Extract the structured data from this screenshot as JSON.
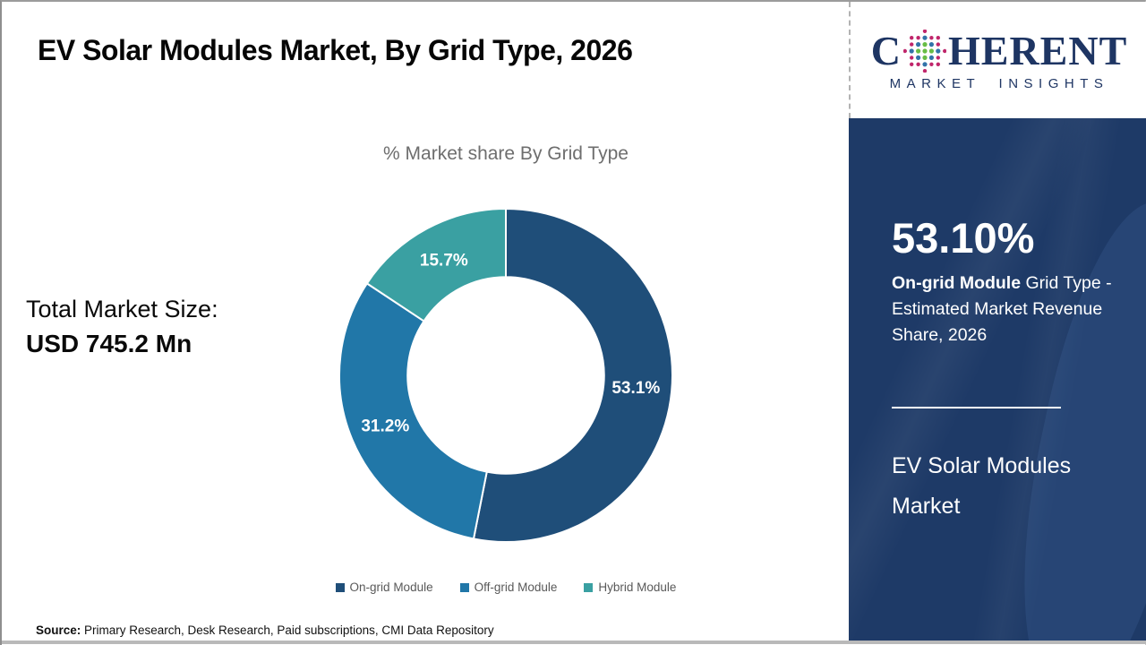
{
  "header": {
    "title": "EV Solar Modules Market, By Grid Type, 2026"
  },
  "logo": {
    "name_c": "C",
    "name_rest": "HERENT",
    "tagline": "MARKET INSIGHTS",
    "text_color": "#1e3563",
    "globe_colors": {
      "green": "#67bd45",
      "blue": "#3273a9",
      "pink": "#c0266b"
    }
  },
  "left_stat": {
    "label": "Total Market Size:",
    "value": "USD 745.2 Mn"
  },
  "chart_data": {
    "type": "pie",
    "subtype": "donut",
    "title": "% Market share By Grid Type",
    "categories": [
      "On-grid Module",
      "Off-grid Module",
      "Hybrid Module"
    ],
    "values": [
      53.1,
      31.2,
      15.7
    ],
    "data_labels": [
      "53.1%",
      "31.2%",
      "15.7%"
    ],
    "colors": [
      "#1f4e79",
      "#2177a8",
      "#3aa0a2"
    ],
    "start_angle_deg": 0,
    "direction": "clockwise",
    "inner_radius_ratio": 0.59,
    "legend_position": "bottom"
  },
  "sidebar": {
    "bg_color": "#1e3a67",
    "stat_value": "53.10%",
    "desc_bold": "On-grid Module",
    "desc_rest": " Grid Type - Estimated Market Revenue Share, 2026",
    "product_name": "EV Solar Modules Market"
  },
  "footer": {
    "source_label": "Source:",
    "source_text": " Primary Research, Desk Research, Paid subscriptions, CMI Data Repository"
  }
}
